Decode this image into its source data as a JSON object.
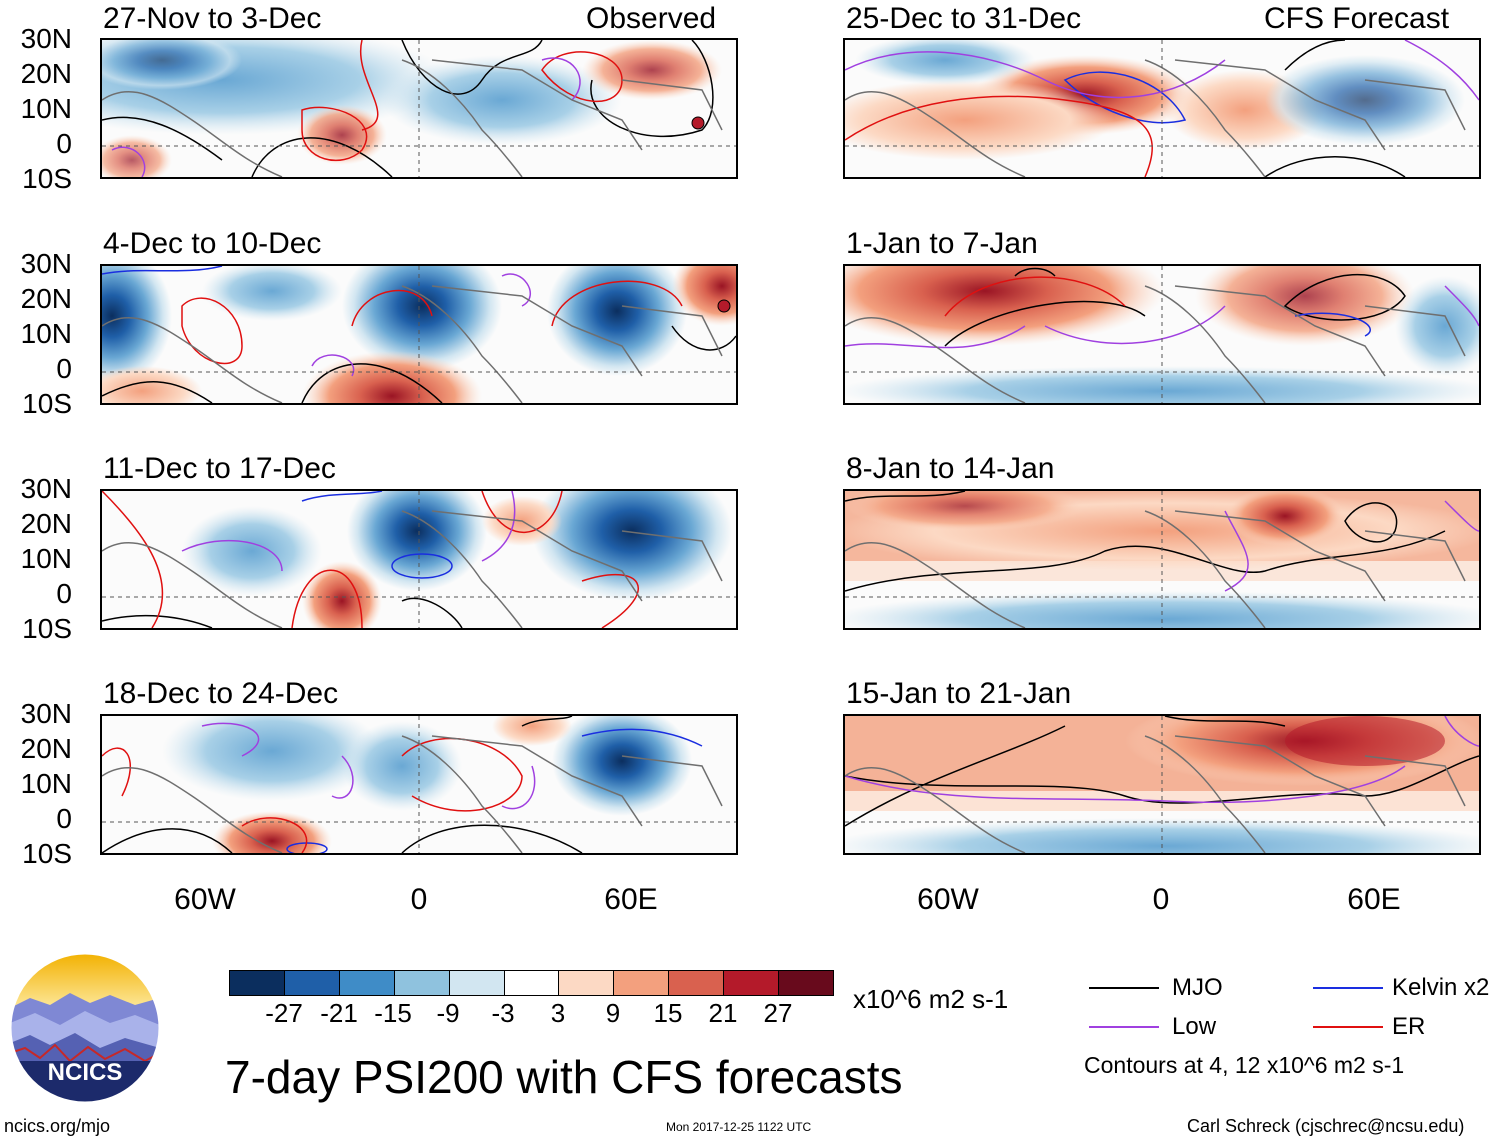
{
  "left_column_label": "Observed",
  "right_column_label": "CFS Forecast",
  "latitude_ticks": [
    "30N",
    "20N",
    "10N",
    "0",
    "10S"
  ],
  "longitude_ticks": [
    "60W",
    "0",
    "60E"
  ],
  "panels_left": [
    {
      "period": "27-Nov to 3-Dec"
    },
    {
      "period": "4-Dec to 10-Dec"
    },
    {
      "period": "11-Dec to 17-Dec"
    },
    {
      "period": "18-Dec to 24-Dec"
    }
  ],
  "panels_right": [
    {
      "period": "25-Dec to 31-Dec"
    },
    {
      "period": "1-Jan to 7-Jan"
    },
    {
      "period": "8-Jan to 14-Jan"
    },
    {
      "period": "15-Jan to 21-Jan"
    }
  ],
  "colorbar": {
    "colors": [
      "#0b2e5e",
      "#1f5fa8",
      "#3f8cc7",
      "#8fc2de",
      "#d2e6f1",
      "#ffffff",
      "#fcd9c4",
      "#f3a07e",
      "#d9614f",
      "#b41a2a",
      "#680a1c"
    ],
    "labels": [
      "-27",
      "-21",
      "-15",
      "-9",
      "-3",
      "3",
      "9",
      "15",
      "21",
      "27"
    ],
    "units": "x10^6 m2 s-1"
  },
  "legend": {
    "items": [
      {
        "label": "MJO",
        "color": "#000000"
      },
      {
        "label": "Kelvin x2",
        "color": "#1a2ee0"
      },
      {
        "label": "Low",
        "color": "#a040e0"
      },
      {
        "label": "ER",
        "color": "#e01010"
      }
    ],
    "contours_note": "Contours at 4, 12 x10^6 m2 s-1"
  },
  "logo_text": "NCICS",
  "main_title": "7-day PSI200 with CFS forecasts",
  "footer": {
    "website": "ncics.org/mjo",
    "timestamp": "Mon 2017-12-25 1122 UTC",
    "author": "Carl Schreck (cjschrec@ncsu.edu)"
  }
}
